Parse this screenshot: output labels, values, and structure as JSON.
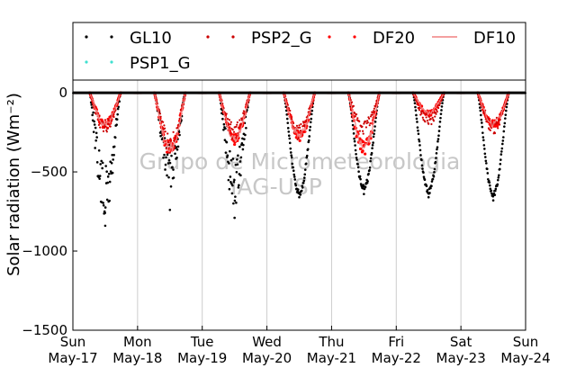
{
  "chart_data": {
    "type": "scatter",
    "title": "",
    "ylabel": "Solar radiation (Wm⁻²)",
    "ylim": [
      -1500,
      80
    ],
    "yticks": [
      0,
      -500,
      -1000,
      -1500
    ],
    "ytick_labels": [
      "0",
      "−500",
      "−1000",
      "−1500"
    ],
    "xlim": [
      "2015-05-17",
      "2015-05-24"
    ],
    "xticks": [
      {
        "top": "Sun",
        "bottom": "May-17"
      },
      {
        "top": "Mon",
        "bottom": "May-18"
      },
      {
        "top": "Tue",
        "bottom": "May-19"
      },
      {
        "top": "Wed",
        "bottom": "May-20"
      },
      {
        "top": "Thu",
        "bottom": "May-21"
      },
      {
        "top": "Fri",
        "bottom": "May-22"
      },
      {
        "top": "Sat",
        "bottom": "May-23"
      },
      {
        "top": "Sun",
        "bottom": "May-24"
      }
    ],
    "grid": "vertical",
    "legend_position": "top",
    "watermark": [
      "Grupo de Micrometeorologia",
      "IAG-USP"
    ],
    "series": [
      {
        "name": "GL10",
        "color": "#000000",
        "style": "dots",
        "daily_min": [
          -840,
          -740,
          -790,
          -660,
          -640,
          -660,
          -680
        ],
        "daily_trough": [
          -820,
          -600,
          -740,
          -650,
          -620,
          -640,
          -660
        ]
      },
      {
        "name": "PSP2_G",
        "color": "#cc0000",
        "style": "dots",
        "daily_min": [
          -260,
          -380,
          -300,
          -300,
          -270,
          -210,
          -260
        ]
      },
      {
        "name": "DF20",
        "color": "#ff0000",
        "style": "dots",
        "daily_min": [
          -230,
          -400,
          -330,
          -310,
          -400,
          -150,
          -230
        ]
      },
      {
        "name": "DF10",
        "color": "#f08080",
        "style": "line",
        "daily_min": [
          -220,
          -390,
          -320,
          -300,
          -380,
          -140,
          -220
        ]
      },
      {
        "name": "PSP1_G",
        "color": "#40e0d0",
        "style": "dots",
        "daily_min": []
      }
    ]
  }
}
